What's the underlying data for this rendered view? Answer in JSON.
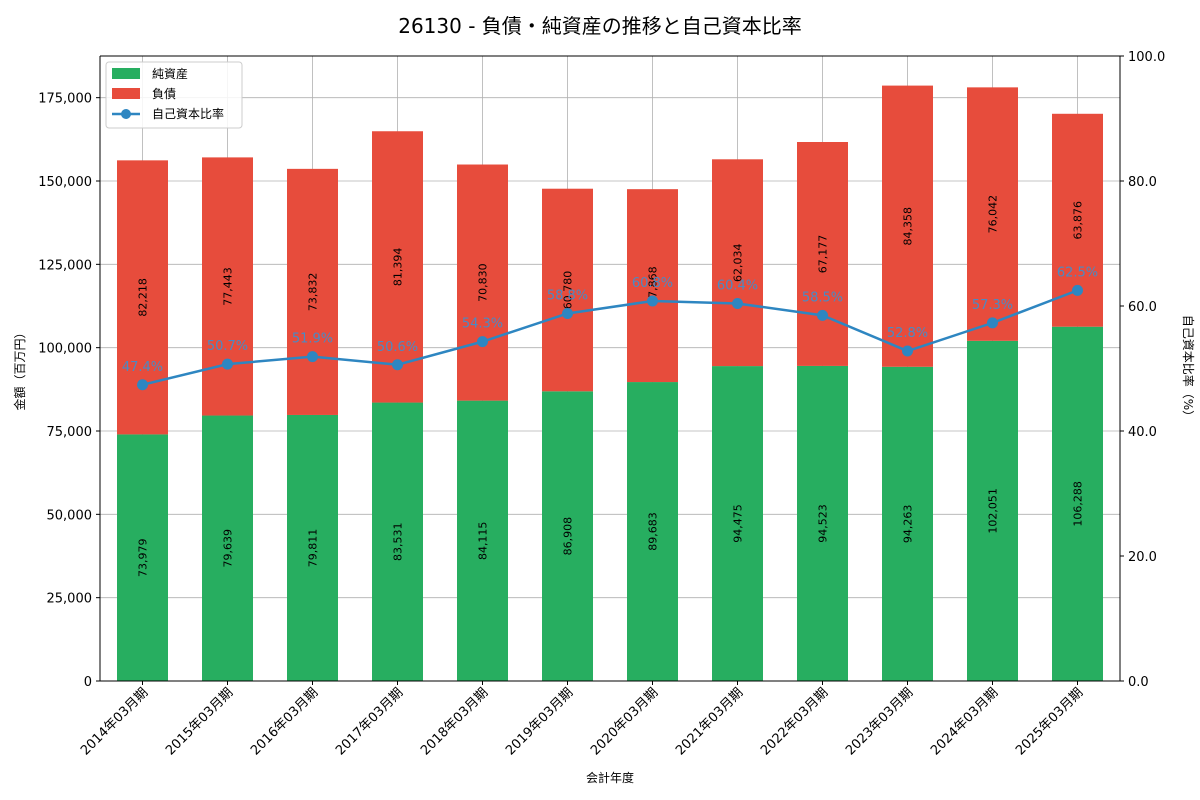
{
  "colors": {
    "equity": "#27ae60",
    "liabilities": "#e74c3c",
    "ratio": "#2e86c1",
    "grid": "#b0b0b0"
  },
  "chart_data": {
    "type": "bar",
    "title": "26130 - 負債・純資産の推移と自己資本比率",
    "xlabel": "会計年度",
    "ylabel": "金額（百万円）",
    "y2label": "自己資本比率（%）",
    "ylim": [
      0,
      187500
    ],
    "y2lim": [
      0,
      100
    ],
    "yticks": [
      0,
      25000,
      50000,
      75000,
      100000,
      125000,
      150000,
      175000
    ],
    "ytick_labels": [
      "0",
      "25,000",
      "50,000",
      "75,000",
      "100,000",
      "125,000",
      "150,000",
      "175,000"
    ],
    "y2ticks": [
      0,
      20,
      40,
      60,
      80,
      100
    ],
    "y2tick_labels": [
      "0.0",
      "20.0",
      "40.0",
      "60.0",
      "80.0",
      "100.0"
    ],
    "grid": true,
    "legend_position": "top-left",
    "categories": [
      "2014年03月期",
      "2015年03月期",
      "2016年03月期",
      "2017年03月期",
      "2018年03月期",
      "2019年03月期",
      "2020年03月期",
      "2021年03月期",
      "2022年03月期",
      "2023年03月期",
      "2024年03月期",
      "2025年03月期"
    ],
    "series": [
      {
        "name": "純資産",
        "values": [
          73979,
          79639,
          79811,
          83531,
          84115,
          86908,
          89683,
          94475,
          94523,
          94263,
          102051,
          106288
        ],
        "labels": [
          "73,979",
          "79,639",
          "79,811",
          "83,531",
          "84,115",
          "86,908",
          "89,683",
          "94,475",
          "94,523",
          "94,263",
          "102,051",
          "106,288"
        ]
      },
      {
        "name": "負債",
        "values": [
          82218,
          77443,
          73832,
          81394,
          70830,
          60780,
          57868,
          62034,
          67177,
          84358,
          76042,
          63876
        ],
        "labels": [
          "82,218",
          "77,443",
          "73,832",
          "81,394",
          "70,830",
          "60,780",
          "57,868",
          "62,034",
          "67,177",
          "84,358",
          "76,042",
          "63,876"
        ]
      },
      {
        "name": "自己資本比率",
        "axis": "right",
        "type": "line",
        "values": [
          47.4,
          50.7,
          51.9,
          50.6,
          54.3,
          58.8,
          60.8,
          60.4,
          58.5,
          52.8,
          57.3,
          62.5
        ],
        "labels": [
          "47.4%",
          "50.7%",
          "51.9%",
          "50.6%",
          "54.3%",
          "58.8%",
          "60.8%",
          "60.4%",
          "58.5%",
          "52.8%",
          "57.3%",
          "62.5%"
        ]
      }
    ]
  }
}
